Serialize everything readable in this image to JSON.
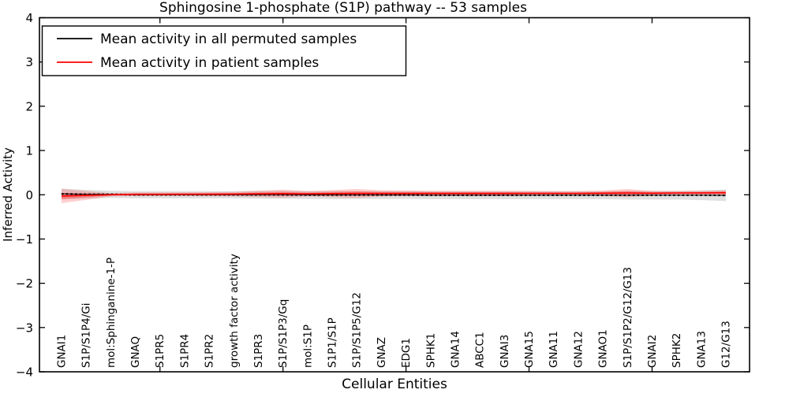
{
  "chart_data": {
    "type": "line",
    "title": "Sphingosine 1-phosphate (S1P) pathway -- 53 samples",
    "xlabel": "Cellular Entities",
    "ylabel": "Inferred Activity",
    "ylim": [
      -4,
      4
    ],
    "yticks": [
      {
        "v": 4,
        "label": "4"
      },
      {
        "v": 3,
        "label": "3"
      },
      {
        "v": 2,
        "label": "2"
      },
      {
        "v": 1,
        "label": "1"
      },
      {
        "v": 0,
        "label": "0"
      },
      {
        "v": -1,
        "label": "−1"
      },
      {
        "v": -2,
        "label": "−2"
      },
      {
        "v": -3,
        "label": "−3"
      },
      {
        "v": -4,
        "label": "−4"
      }
    ],
    "xtick_indices": [
      4,
      9,
      14,
      19,
      24
    ],
    "legend_position": "upper left",
    "categories": [
      "GNAI1",
      "S1P/S1P4/Gi",
      "mol:Sphinganine-1-P",
      "GNAQ",
      "S1PR5",
      "S1PR4",
      "S1PR2",
      "growth factor activity",
      "S1PR3",
      "S1P/S1P3/Gq",
      "mol:S1P",
      "S1P1/S1P",
      "S1P/S1P5/G12",
      "GNAZ",
      "EDG1",
      "SPHK1",
      "GNA14",
      "ABCC1",
      "GNAI3",
      "GNA15",
      "GNA11",
      "GNA12",
      "GNAO1",
      "S1P/S1P2/G12/G13",
      "GNAI2",
      "SPHK2",
      "GNA13",
      "G12/G13"
    ],
    "series": [
      {
        "name": "Mean activity in all permuted samples",
        "color": "#000000",
        "line_style": "solid-with-dashes",
        "values": [
          0.02,
          0.01,
          0.01,
          0.0,
          0.0,
          0.0,
          0.0,
          0.0,
          0.0,
          0.0,
          -0.005,
          -0.005,
          -0.005,
          -0.005,
          -0.005,
          -0.01,
          -0.01,
          -0.01,
          -0.01,
          -0.01,
          -0.01,
          -0.01,
          -0.01,
          -0.01,
          -0.01,
          -0.01,
          -0.01,
          -0.013
        ],
        "band_half_widths": [
          0.12,
          0.1,
          0.08,
          0.08,
          0.08,
          0.08,
          0.08,
          0.08,
          0.09,
          0.09,
          0.09,
          0.09,
          0.09,
          0.09,
          0.09,
          0.09,
          0.09,
          0.09,
          0.09,
          0.09,
          0.09,
          0.09,
          0.09,
          0.1,
          0.1,
          0.1,
          0.11,
          0.13
        ],
        "band_color": "#bfbfbf",
        "band_opacity": 0.5
      },
      {
        "name": "Mean activity in patient samples",
        "color": "#ff0000",
        "line_style": "solid",
        "values": [
          -0.03,
          -0.015,
          0.0,
          0.01,
          0.01,
          0.012,
          0.012,
          0.015,
          0.02,
          0.025,
          0.02,
          0.025,
          0.03,
          0.03,
          0.03,
          0.03,
          0.03,
          0.03,
          0.03,
          0.032,
          0.032,
          0.032,
          0.035,
          0.04,
          0.035,
          0.04,
          0.042,
          0.046
        ],
        "band_half_widths": [
          0.16,
          0.1,
          0.035,
          0.04,
          0.04,
          0.04,
          0.045,
          0.05,
          0.07,
          0.09,
          0.06,
          0.08,
          0.1,
          0.07,
          0.065,
          0.06,
          0.06,
          0.06,
          0.06,
          0.055,
          0.05,
          0.05,
          0.06,
          0.09,
          0.05,
          0.045,
          0.045,
          0.055
        ],
        "band_color": "#ff2222",
        "band_opacity": 0.22
      }
    ],
    "axis_color": "#000000",
    "background_color": "#ffffff"
  }
}
